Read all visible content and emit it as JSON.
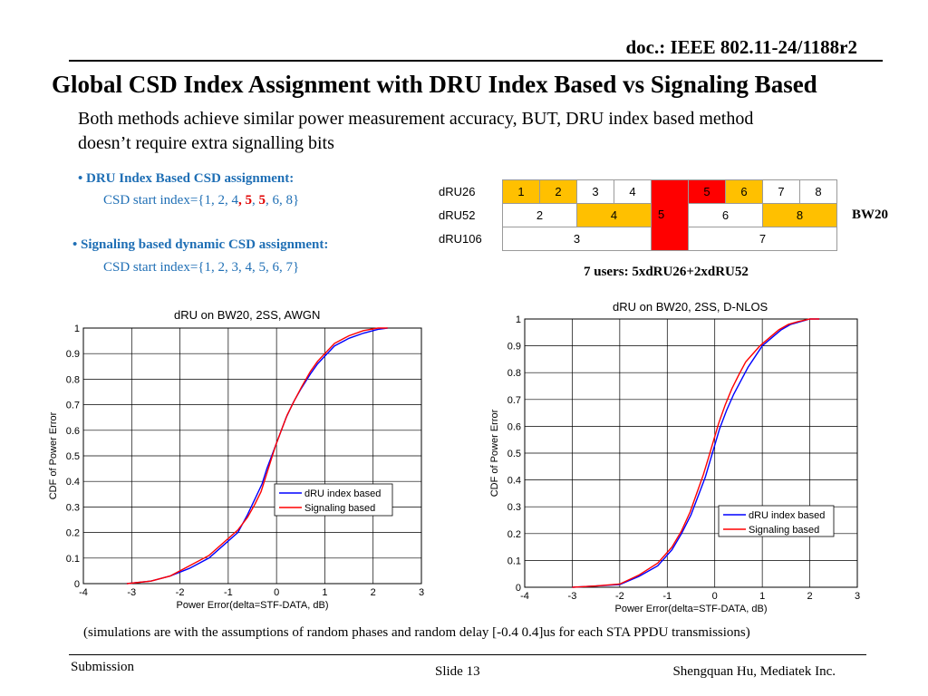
{
  "header": {
    "doc_id": "doc.: IEEE 802.11-24/1188r2"
  },
  "slide": {
    "title": "Global CSD Index Assignment with DRU Index Based vs Signaling Based",
    "intro": "Both methods achieve similar power measurement accuracy, BUT, DRU index based method doesn’t require extra signalling bits",
    "bullet1": {
      "heading": "• DRU Index Based CSD assignment:",
      "csd_prefix": "CSD start index={1, 2, 4",
      "csd_sep1": ", ",
      "csd_hl1": "5",
      "csd_sep2": ", ",
      "csd_hl2": "5",
      "csd_suffix": ", 6, 8}"
    },
    "bullet2": {
      "heading": "• Signaling based dynamic CSD assignment:",
      "csd": "CSD start index={1, 2, 3, 4, 5, 6, 7}"
    },
    "table": {
      "row_labels": [
        "dRU26",
        "dRU52",
        "dRU106"
      ],
      "r1": [
        "1",
        "2",
        "3",
        "4",
        "5",
        "6",
        "7",
        "8"
      ],
      "r2": [
        "2",
        "4",
        "5",
        "6",
        "8"
      ],
      "r3": [
        "3",
        "7"
      ],
      "bw_label": "BW20",
      "users_note": "7 users:  5xdRU26+2xdRU52"
    },
    "colors": {
      "highlight_yellow": "#ffc000",
      "highlight_red": "#ff0000",
      "heading_blue": "#1f6fb5"
    },
    "footnote": "(simulations are with the assumptions of  random phases and random delay [-0.4 0.4]us for each STA PPDU transmissions)"
  },
  "footer": {
    "submission": "Submission",
    "slide_number": "Slide 13",
    "author": "Shengquan Hu, Mediatek Inc."
  },
  "chart_data": [
    {
      "type": "line",
      "title": "dRU on BW20, 2SS, AWGN",
      "xlabel": "Power Error(delta=STF-DATA, dB)",
      "ylabel": "CDF of Power Error",
      "xlim": [
        -4,
        3
      ],
      "ylim": [
        0,
        1
      ],
      "xticks": [
        "-4",
        "-3",
        "-2",
        "-1",
        "0",
        "1",
        "2",
        "3"
      ],
      "yticks": [
        "0",
        "0.1",
        "0.2",
        "0.3",
        "0.4",
        "0.5",
        "0.6",
        "0.7",
        "0.8",
        "0.9",
        "1"
      ],
      "grid": true,
      "legend_position": "center-right",
      "series": [
        {
          "name": "dRU index based",
          "color": "#0000ff",
          "x": [
            -3.1,
            -2.6,
            -2.2,
            -1.8,
            -1.4,
            -1.1,
            -0.8,
            -0.6,
            -0.45,
            -0.3,
            -0.2,
            -0.1,
            0.0,
            0.1,
            0.2,
            0.35,
            0.5,
            0.7,
            0.85,
            1.0,
            1.2,
            1.5,
            1.8,
            2.1,
            2.3
          ],
          "y": [
            0.0,
            0.01,
            0.03,
            0.06,
            0.1,
            0.15,
            0.2,
            0.27,
            0.33,
            0.39,
            0.45,
            0.5,
            0.55,
            0.6,
            0.65,
            0.71,
            0.76,
            0.82,
            0.86,
            0.89,
            0.93,
            0.96,
            0.98,
            0.995,
            1.0
          ]
        },
        {
          "name": "Signaling based",
          "color": "#ff0000",
          "x": [
            -3.1,
            -2.6,
            -2.2,
            -1.8,
            -1.4,
            -1.1,
            -0.8,
            -0.6,
            -0.45,
            -0.32,
            -0.22,
            -0.12,
            -0.02,
            0.1,
            0.22,
            0.38,
            0.52,
            0.7,
            0.85,
            1.0,
            1.2,
            1.5,
            1.8,
            2.1,
            2.3
          ],
          "y": [
            0.0,
            0.01,
            0.03,
            0.07,
            0.11,
            0.16,
            0.21,
            0.26,
            0.31,
            0.36,
            0.42,
            0.48,
            0.54,
            0.6,
            0.66,
            0.72,
            0.77,
            0.83,
            0.87,
            0.9,
            0.94,
            0.97,
            0.99,
            1.0,
            1.0
          ]
        }
      ]
    },
    {
      "type": "line",
      "title": "dRU on BW20, 2SS, D-NLOS",
      "xlabel": "Power Error(delta=STF-DATA, dB)",
      "ylabel": "CDF of Power Error",
      "xlim": [
        -4,
        3
      ],
      "ylim": [
        0,
        1
      ],
      "xticks": [
        "-4",
        "-3",
        "-2",
        "-1",
        "0",
        "1",
        "2",
        "3"
      ],
      "yticks": [
        "0",
        "0.1",
        "0.2",
        "0.3",
        "0.4",
        "0.5",
        "0.6",
        "0.7",
        "0.8",
        "0.9",
        "1"
      ],
      "grid": true,
      "legend_position": "bottom-right",
      "series": [
        {
          "name": "dRU index based",
          "color": "#0000ff",
          "x": [
            -3.0,
            -2.5,
            -2.0,
            -1.6,
            -1.2,
            -0.9,
            -0.7,
            -0.5,
            -0.35,
            -0.2,
            -0.1,
            0.0,
            0.1,
            0.25,
            0.4,
            0.55,
            0.7,
            0.85,
            1.0,
            1.2,
            1.4,
            1.6,
            1.8,
            2.0,
            2.2
          ],
          "y": [
            0.0,
            0.005,
            0.01,
            0.04,
            0.08,
            0.14,
            0.2,
            0.27,
            0.34,
            0.41,
            0.47,
            0.53,
            0.59,
            0.66,
            0.72,
            0.77,
            0.82,
            0.86,
            0.9,
            0.93,
            0.96,
            0.98,
            0.99,
            1.0,
            1.0
          ]
        },
        {
          "name": "Signaling based",
          "color": "#ff0000",
          "x": [
            -3.0,
            -2.5,
            -2.0,
            -1.6,
            -1.2,
            -0.9,
            -0.7,
            -0.52,
            -0.38,
            -0.24,
            -0.12,
            -0.02,
            0.08,
            0.22,
            0.36,
            0.5,
            0.65,
            0.8,
            0.95,
            1.15,
            1.35,
            1.55,
            1.75,
            2.0,
            2.2
          ],
          "y": [
            0.0,
            0.005,
            0.012,
            0.045,
            0.09,
            0.15,
            0.21,
            0.28,
            0.35,
            0.42,
            0.49,
            0.55,
            0.61,
            0.68,
            0.74,
            0.79,
            0.84,
            0.87,
            0.9,
            0.93,
            0.96,
            0.98,
            0.99,
            1.0,
            1.0
          ]
        }
      ]
    }
  ]
}
